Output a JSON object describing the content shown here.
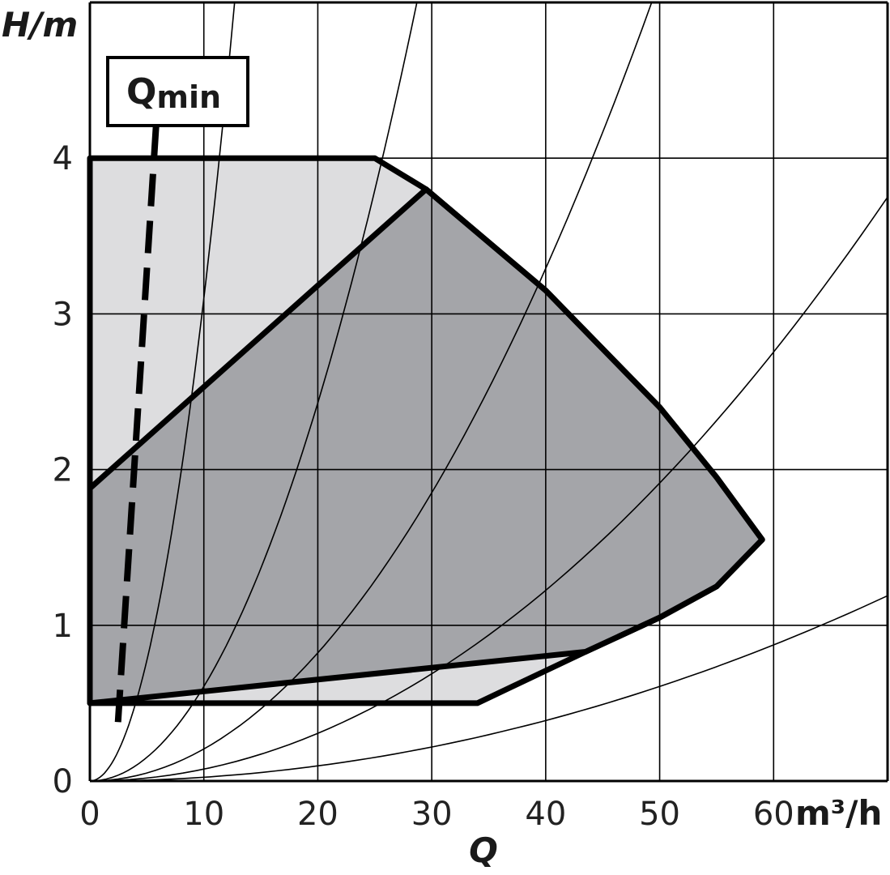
{
  "chart_data": {
    "type": "line",
    "title": "",
    "xlabel": "Q",
    "x_unit": "m³/h",
    "ylabel": "H/m",
    "xlim": [
      0,
      70
    ],
    "ylim": [
      0,
      5
    ],
    "x_ticks": [
      "0",
      "10",
      "20",
      "30",
      "40",
      "50",
      "60"
    ],
    "y_ticks": [
      "0",
      "1",
      "2",
      "3",
      "4"
    ],
    "grid": true,
    "legend": "none",
    "qmin_label": "Q",
    "qmin_subscript": "min",
    "colors": {
      "max_range_fill": "#dddddf",
      "nominal_range_fill": "#a4a5a9",
      "outline": "#000000",
      "grid": "#000000"
    },
    "max_curve": [
      [
        0,
        4.0
      ],
      [
        25,
        4.0
      ],
      [
        29.5,
        3.8
      ],
      [
        40,
        3.15
      ],
      [
        50,
        2.4
      ],
      [
        55,
        1.95
      ],
      [
        59,
        1.55
      ],
      [
        55,
        1.25
      ],
      [
        50,
        1.05
      ],
      [
        43.5,
        0.83
      ],
      [
        34,
        0.5
      ],
      [
        0,
        0.5
      ]
    ],
    "nominal_curve": [
      [
        0,
        1.88
      ],
      [
        29.5,
        3.8
      ],
      [
        40,
        3.15
      ],
      [
        50,
        2.4
      ],
      [
        55,
        1.95
      ],
      [
        59,
        1.55
      ],
      [
        55,
        1.25
      ],
      [
        50,
        1.05
      ],
      [
        43.5,
        0.83
      ],
      [
        0,
        0.5
      ]
    ],
    "qmin_line": [
      [
        5.8,
        4.2
      ],
      [
        2.4,
        0.3
      ]
    ],
    "system_curves": [
      {
        "H_max": 5.0,
        "Q_max": 12.7
      },
      {
        "H_max": 5.0,
        "Q_max": 28.7
      },
      {
        "H_max": 5.0,
        "Q_max": 49.3
      },
      {
        "H_max": 3.75,
        "Q_max": 70
      },
      {
        "H_max": 1.19,
        "Q_max": 70
      }
    ]
  }
}
